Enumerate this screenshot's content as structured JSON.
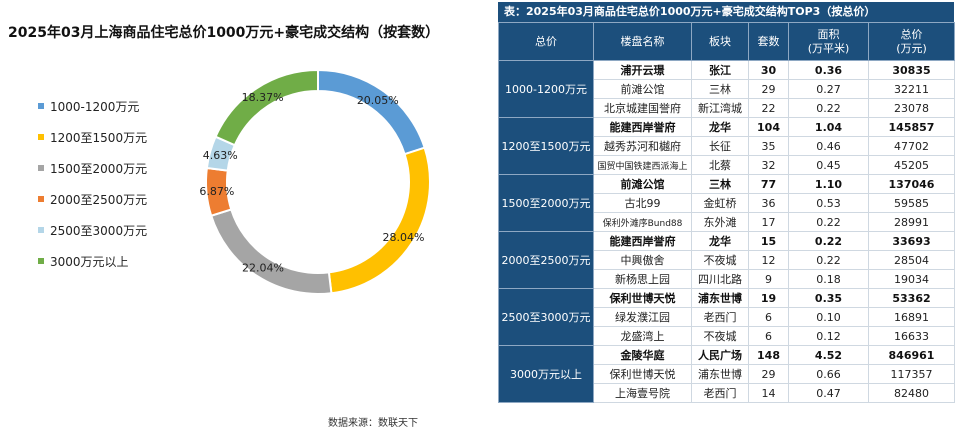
{
  "left": {
    "title": "2025年03月上海商品住宅总价1000万元+豪宅成交结构（按套数）",
    "source": "数据来源：数联天下"
  },
  "chart_data": {
    "type": "pie",
    "donut": true,
    "title": "2025年03月上海商品住宅总价1000万元+豪宅成交结构（按套数）",
    "legend_position": "left",
    "categories": [
      "1000-1200万元",
      "1200至1500万元",
      "1500至2000万元",
      "2000至2500万元",
      "2500至3000万元",
      "3000万元以上"
    ],
    "values": [
      20.05,
      28.04,
      22.04,
      6.87,
      4.63,
      18.37
    ],
    "labels": [
      "20.05%",
      "28.04%",
      "22.04%",
      "6.87%",
      "4.63%",
      "18.37%"
    ],
    "colors": [
      "#5b9bd5",
      "#ffc000",
      "#a5a5a5",
      "#ed7d31",
      "#b4d6e8",
      "#70ad47"
    ]
  },
  "table": {
    "title": "表：2025年03月商品住宅总价1000万元+豪宅成交结构TOP3（按总价）",
    "headers": [
      "总价",
      "楼盘名称",
      "板块",
      "套数",
      "面积\n(万平米)",
      "总价\n(万元)"
    ],
    "groups": [
      {
        "label": "1000-1200万元",
        "rows": [
          [
            "浦开云璟",
            "张江",
            "30",
            "0.36",
            "30835"
          ],
          [
            "前滩公馆",
            "三林",
            "29",
            "0.27",
            "32211"
          ],
          [
            "北京城建国誉府",
            "新江湾城",
            "22",
            "0.22",
            "23078"
          ]
        ]
      },
      {
        "label": "1200至1500万元",
        "rows": [
          [
            "能建西岸誉府",
            "龙华",
            "104",
            "1.04",
            "145857"
          ],
          [
            "越秀苏河和樾府",
            "长征",
            "35",
            "0.46",
            "47702"
          ],
          [
            "国贸中国铁建西派海上",
            "北蔡",
            "32",
            "0.45",
            "45205"
          ]
        ]
      },
      {
        "label": "1500至2000万元",
        "rows": [
          [
            "前滩公馆",
            "三林",
            "77",
            "1.10",
            "137046"
          ],
          [
            "古北99",
            "金虹桥",
            "36",
            "0.53",
            "59585"
          ],
          [
            "保利外滩序Bund88",
            "东外滩",
            "17",
            "0.22",
            "28991"
          ]
        ]
      },
      {
        "label": "2000至2500万元",
        "rows": [
          [
            "能建西岸誉府",
            "龙华",
            "15",
            "0.22",
            "33693"
          ],
          [
            "中興傲舍",
            "不夜城",
            "12",
            "0.22",
            "28504"
          ],
          [
            "新杨思上园",
            "四川北路",
            "9",
            "0.18",
            "19034"
          ]
        ]
      },
      {
        "label": "2500至3000万元",
        "rows": [
          [
            "保利世博天悦",
            "浦东世博",
            "19",
            "0.35",
            "53362"
          ],
          [
            "绿发濮江园",
            "老西门",
            "6",
            "0.10",
            "16891"
          ],
          [
            "龙盛湾上",
            "不夜城",
            "6",
            "0.12",
            "16633"
          ]
        ]
      },
      {
        "label": "3000万元以上",
        "rows": [
          [
            "金陵华庭",
            "人民广场",
            "148",
            "4.52",
            "846961"
          ],
          [
            "保利世博天悦",
            "浦东世博",
            "29",
            "0.66",
            "117357"
          ],
          [
            "上海壹号院",
            "老西门",
            "14",
            "0.47",
            "82480"
          ]
        ]
      }
    ]
  }
}
